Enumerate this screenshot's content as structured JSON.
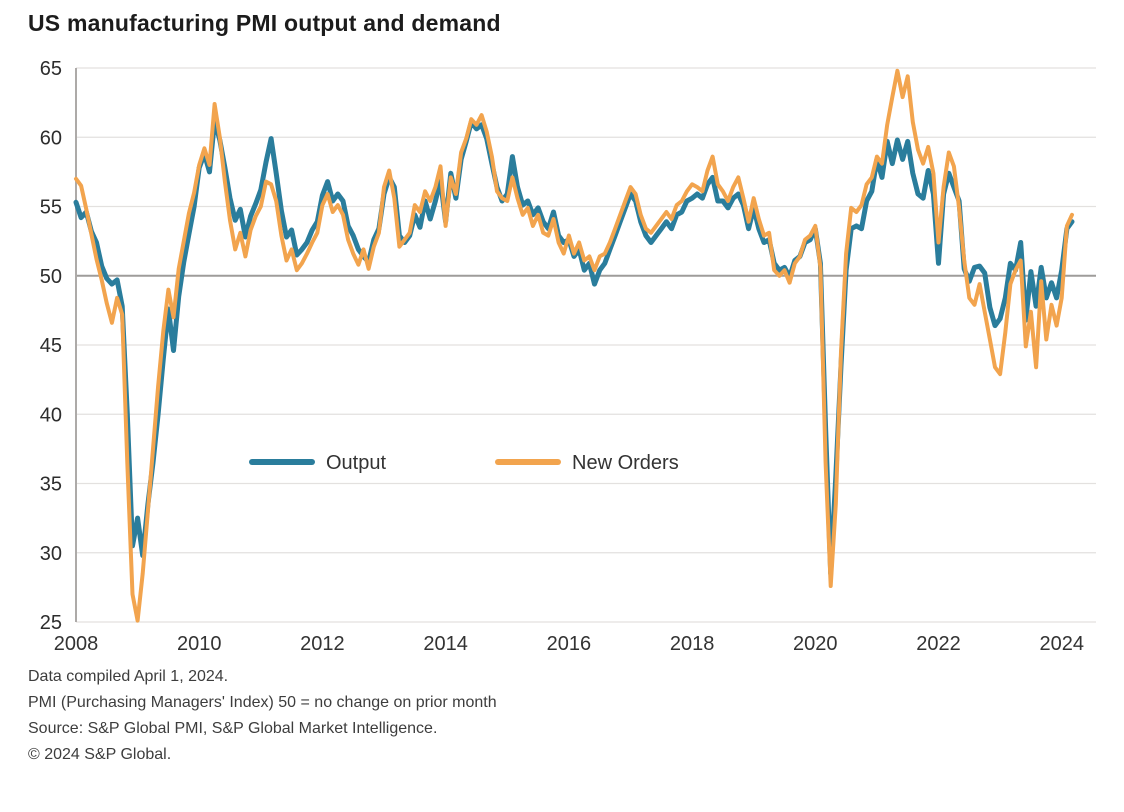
{
  "chart_data": {
    "type": "line",
    "title": "US manufacturing PMI output and demand",
    "x_start": "2008-01",
    "x_end": "2024-03",
    "frequency": "monthly",
    "ylim": [
      25,
      65
    ],
    "yticks": [
      25,
      30,
      35,
      40,
      45,
      50,
      55,
      60,
      65
    ],
    "xticks": [
      2008,
      2010,
      2012,
      2014,
      2016,
      2018,
      2020,
      2022,
      2024
    ],
    "reference_line": 50,
    "grid": "horizontal",
    "legend_position": "inside-left-middle",
    "series": [
      {
        "name": "Output",
        "color": "#2a7d9c",
        "values": [
          55.3,
          54.2,
          54.6,
          53.2,
          52.4,
          50.7,
          49.8,
          49.4,
          49.7,
          47.8,
          40.0,
          30.5,
          32.5,
          29.8,
          33.5,
          36.5,
          40.0,
          44.0,
          47.6,
          44.6,
          48.5,
          51.0,
          53.0,
          55.0,
          57.8,
          58.8,
          57.5,
          61.2,
          59.8,
          57.8,
          55.6,
          54.0,
          54.8,
          52.8,
          54.3,
          55.2,
          56.2,
          58.2,
          59.9,
          57.4,
          54.7,
          52.8,
          53.3,
          51.5,
          51.9,
          52.4,
          53.3,
          53.9,
          55.8,
          56.8,
          55.4,
          55.9,
          55.4,
          53.6,
          52.9,
          51.9,
          51.4,
          51.0,
          52.6,
          53.4,
          55.9,
          57.1,
          56.4,
          52.9,
          52.4,
          52.9,
          54.4,
          53.5,
          55.4,
          54.1,
          55.4,
          56.9,
          53.9,
          57.4,
          55.6,
          58.4,
          59.7,
          61.1,
          60.6,
          60.9,
          59.9,
          58.1,
          56.4,
          55.4,
          55.9,
          58.6,
          56.4,
          55.1,
          55.4,
          54.4,
          54.9,
          53.9,
          53.4,
          54.6,
          52.9,
          52.4,
          52.6,
          51.4,
          51.9,
          50.4,
          50.9,
          49.4,
          50.4,
          50.9,
          51.9,
          52.9,
          53.9,
          54.9,
          55.9,
          55.4,
          53.9,
          52.9,
          52.4,
          52.9,
          53.4,
          53.9,
          53.4,
          54.4,
          54.6,
          55.4,
          55.6,
          55.9,
          55.6,
          56.6,
          57.1,
          55.4,
          55.4,
          54.9,
          55.6,
          55.9,
          55.1,
          53.4,
          54.9,
          53.4,
          52.4,
          52.6,
          50.9,
          50.4,
          50.6,
          49.9,
          51.1,
          51.4,
          52.4,
          52.6,
          53.4,
          50.9,
          39.0,
          28.5,
          35.5,
          43.5,
          50.4,
          53.4,
          53.6,
          53.4,
          55.4,
          56.1,
          58.4,
          57.1,
          59.7,
          58.1,
          59.8,
          58.4,
          59.7,
          57.4,
          55.9,
          55.6,
          57.6,
          55.9,
          50.9,
          55.9,
          57.4,
          56.4,
          55.4,
          50.5,
          49.6,
          50.6,
          50.7,
          50.2,
          47.7,
          46.4,
          46.9,
          48.4,
          50.9,
          50.4,
          52.4,
          46.8,
          50.3,
          47.8,
          50.6,
          48.4,
          49.5,
          48.4,
          50.4,
          53.4,
          53.9
        ]
      },
      {
        "name": "New Orders",
        "color": "#f2a44e",
        "values": [
          57.0,
          56.5,
          54.8,
          53.0,
          51.2,
          49.7,
          48.0,
          46.6,
          48.4,
          47.2,
          36.5,
          27.0,
          25.1,
          28.5,
          33.0,
          37.5,
          42.0,
          46.0,
          49.0,
          47.0,
          50.5,
          52.5,
          54.5,
          56.0,
          58.0,
          59.2,
          58.0,
          62.4,
          60.0,
          56.8,
          54.0,
          51.9,
          53.1,
          51.4,
          53.3,
          54.3,
          55.0,
          56.8,
          56.6,
          55.4,
          52.9,
          51.1,
          51.9,
          50.4,
          50.9,
          51.6,
          52.4,
          53.1,
          55.1,
          55.9,
          54.6,
          55.1,
          54.4,
          52.6,
          51.6,
          50.8,
          51.9,
          50.5,
          52.1,
          53.1,
          56.4,
          57.6,
          55.6,
          52.1,
          52.6,
          53.1,
          55.1,
          54.6,
          56.1,
          55.4,
          56.4,
          57.9,
          53.6,
          57.1,
          55.9,
          58.9,
          59.9,
          61.3,
          60.9,
          61.6,
          60.4,
          58.6,
          56.1,
          55.6,
          55.4,
          57.1,
          55.6,
          54.4,
          54.9,
          53.6,
          54.4,
          53.1,
          52.9,
          54.1,
          52.4,
          51.6,
          52.9,
          51.6,
          52.4,
          51.1,
          51.4,
          50.4,
          51.4,
          51.6,
          52.4,
          53.4,
          54.4,
          55.4,
          56.4,
          55.9,
          54.4,
          53.4,
          53.1,
          53.6,
          54.1,
          54.6,
          54.1,
          55.1,
          55.4,
          56.1,
          56.6,
          56.4,
          56.1,
          57.6,
          58.6,
          56.6,
          56.1,
          55.4,
          56.4,
          57.1,
          55.6,
          53.9,
          55.6,
          54.1,
          52.9,
          53.1,
          50.4,
          50.0,
          50.4,
          49.5,
          50.9,
          51.4,
          52.6,
          52.9,
          53.6,
          50.6,
          36.5,
          27.6,
          33.5,
          44.5,
          51.6,
          54.9,
          54.6,
          55.1,
          56.6,
          57.1,
          58.6,
          58.1,
          60.9,
          62.9,
          64.8,
          62.9,
          64.4,
          61.1,
          59.1,
          58.1,
          59.3,
          57.4,
          52.4,
          56.4,
          58.9,
          57.9,
          54.9,
          51.1,
          48.4,
          47.9,
          49.4,
          47.4,
          45.4,
          43.4,
          42.9,
          45.9,
          49.4,
          50.4,
          51.1,
          44.9,
          47.4,
          43.4,
          49.6,
          45.4,
          47.9,
          46.4,
          48.4,
          53.6,
          54.4
        ]
      }
    ]
  },
  "footnotes": [
    "Data compiled April 1, 2024.",
    "PMI (Purchasing Managers' Index) 50 = no change on prior month",
    "Source: S&P Global PMI, S&P Global Market Intelligence.",
    "© 2024 S&P Global."
  ],
  "style_colors": {
    "grid_line": "#e3e1df",
    "reference_line": "#9e9c9a",
    "axis_line": "#adaaa8",
    "axis_text": "#2d2d2d",
    "legend_text": "#333333"
  }
}
